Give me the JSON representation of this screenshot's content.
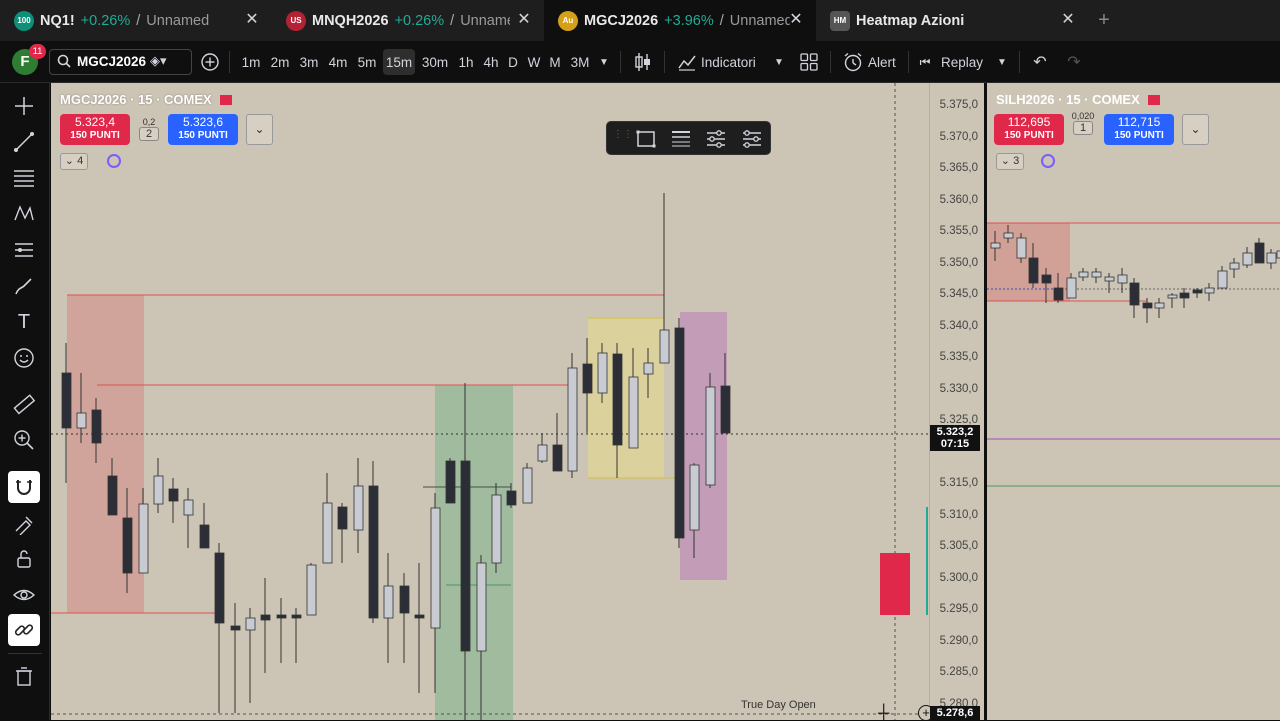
{
  "tabs": [
    {
      "icon_text": "100",
      "icon_color": "#0d8f7a",
      "symbol": "NQ1!",
      "change": "+0.26%",
      "separator": "/",
      "name": "Unnamed",
      "active": false
    },
    {
      "icon_text": "US",
      "icon_color": "#b22234",
      "symbol": "MNQH2026",
      "change": "+0.26%",
      "separator": "/",
      "name": "Unnamed",
      "active": false
    },
    {
      "icon_text": "Au",
      "icon_color": "#d4a017",
      "symbol": "MGCJ2026",
      "change": "+3.96%",
      "separator": "/",
      "name": "Unnamed",
      "active": true
    },
    {
      "icon_text": "HM",
      "icon_color": "#555555",
      "symbol": "Heatmap Azioni",
      "change": "",
      "separator": "",
      "name": "",
      "active": false
    }
  ],
  "new_tab_icon": "plus-icon",
  "toolbar": {
    "avatar_letter": "F",
    "notification_count": "11",
    "symbol_search": "MGCJ2026",
    "timeframes": [
      "1m",
      "2m",
      "3m",
      "4m",
      "5m",
      "15m",
      "30m",
      "1h",
      "4h",
      "D",
      "W",
      "M",
      "3M"
    ],
    "selected_timeframe": "15m",
    "indicators_label": "Indicatori",
    "alert_label": "Alert",
    "replay_label": "Replay"
  },
  "left_tools": [
    "crosshair-icon",
    "trendline-icon",
    "fib-icon",
    "pattern-icon",
    "prediction-icon",
    "brush-icon",
    "text-icon",
    "emoji-icon",
    "ruler-icon",
    "zoom-in-icon",
    "magnet-icon",
    "lock-drawing-icon",
    "unlock-icon",
    "eye-icon",
    "link-icon",
    "trash-icon"
  ],
  "main_chart": {
    "title": "MGCJ2026 · 15 · COMEX",
    "sell_price": "5.323,4",
    "sell_sub": "150 PUNTI",
    "spread_top": "0,2",
    "spread_bottom": "2",
    "buy_price": "5.323,6",
    "buy_sub": "150 PUNTI",
    "indicator_count": "4",
    "price_axis": [
      "5.375,0",
      "5.370,0",
      "5.365,0",
      "5.360,0",
      "5.355,0",
      "5.350,0",
      "5.345,0",
      "5.340,0",
      "5.335,0",
      "5.330,0",
      "5.325,0",
      "5.315,0",
      "5.310,0",
      "5.305,0",
      "5.300,0",
      "5.295,0",
      "5.290,0",
      "5.285,0",
      "5.280,0"
    ],
    "current_price": "5.323,2",
    "countdown": "07:15",
    "crosshair_price": "5.278,6",
    "annotation": "True Day Open",
    "colors": {
      "up": "#c8cbd2",
      "down": "#2b2e36",
      "red": "#e0284a",
      "blue": "#2962ff"
    }
  },
  "side_chart": {
    "title": "SILH2026 · 15 · COMEX",
    "sell_price": "112,695",
    "sell_sub": "150 PUNTI",
    "spread_top": "0,020",
    "spread_bottom": "1",
    "buy_price": "112,715",
    "buy_sub": "150 PUNTI",
    "indicator_count": "3"
  }
}
